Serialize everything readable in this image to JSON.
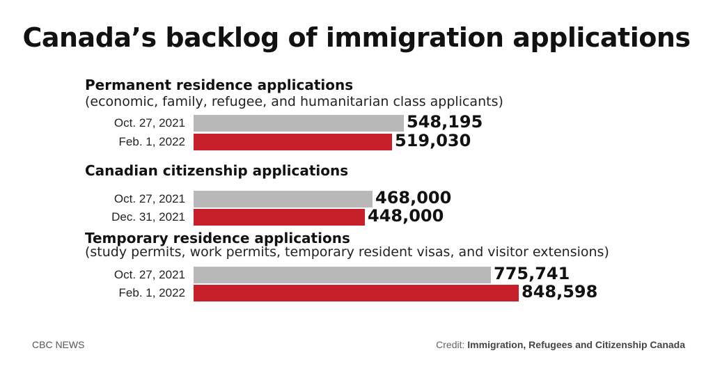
{
  "title": "Canada’s backlog of immigration applications",
  "footer": {
    "source_brand": "CBC NEWS",
    "credit_label": "Credit:",
    "credit_value": "Immigration, Refugees and Citizenship Canada"
  },
  "colors": {
    "earlier": "#b8b8b8",
    "later": "#c8202a"
  },
  "chart_data": {
    "type": "bar",
    "orientation": "horizontal",
    "title": "Canada’s backlog of immigration applications",
    "xlim": [
      0,
      1000000
    ],
    "grid": false,
    "groups": [
      {
        "title": "Permanent residence applications",
        "subtitle": "(economic, family, refugee, and humanitarian class applicants)",
        "rows": [
          {
            "label": "Oct. 27, 2021",
            "value": 548195,
            "value_label": "548,195",
            "color": "earlier"
          },
          {
            "label": "Feb. 1, 2022",
            "value": 519030,
            "value_label": "519,030",
            "color": "later"
          }
        ]
      },
      {
        "title": "Canadian citizenship applications",
        "subtitle": "",
        "rows": [
          {
            "label": "Oct. 27, 2021",
            "value": 468000,
            "value_label": "468,000",
            "color": "earlier"
          },
          {
            "label": "Dec. 31, 2021",
            "value": 448000,
            "value_label": "448,000",
            "color": "later"
          }
        ]
      },
      {
        "title": "Temporary residence applications",
        "subtitle": "(study permits, work permits, temporary resident visas, and visitor extensions)",
        "rows": [
          {
            "label": "Oct. 27, 2021",
            "value": 775741,
            "value_label": "775,741",
            "color": "earlier"
          },
          {
            "label": "Feb. 1, 2022",
            "value": 848598,
            "value_label": "848,598",
            "color": "later"
          }
        ]
      }
    ]
  }
}
